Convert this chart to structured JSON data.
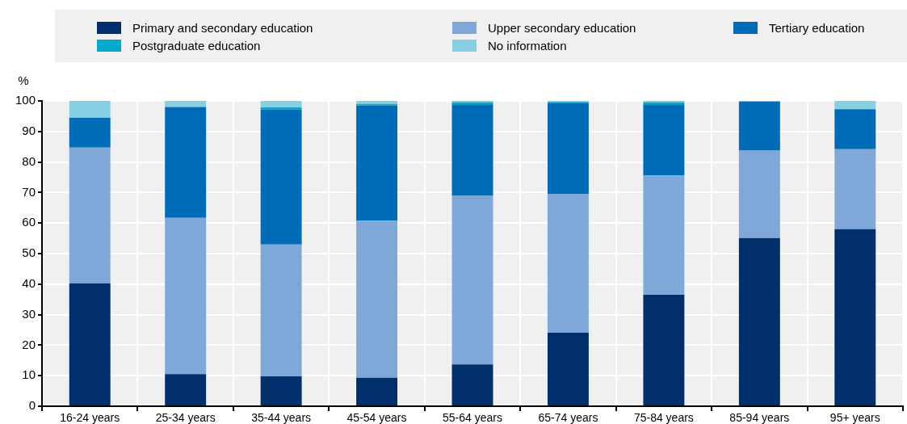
{
  "chart_data": {
    "type": "bar",
    "stacked": true,
    "ylabel": "%",
    "categories": [
      "16-24 years",
      "25-34 years",
      "35-44 years",
      "45-54 years",
      "55-64 years",
      "65-74 years",
      "75-84 years",
      "85-94 years",
      "95+ years"
    ],
    "series": [
      {
        "name": "Primary and secondary education",
        "color": "#002f6c",
        "values": [
          40.2,
          10.5,
          9.8,
          9.3,
          13.7,
          24.1,
          36.5,
          55.1,
          58.0
        ]
      },
      {
        "name": "Upper secondary education",
        "color": "#7fa8d9",
        "values": [
          44.5,
          51.2,
          43.2,
          51.5,
          55.2,
          45.5,
          39.1,
          28.6,
          26.2
        ]
      },
      {
        "name": "Tertiary education",
        "color": "#006bb6",
        "values": [
          9.8,
          36.3,
          44.2,
          37.7,
          30.0,
          29.6,
          23.3,
          16.1,
          13.1
        ]
      },
      {
        "name": "Postgraduate education",
        "color": "#00aacc",
        "values": [
          0,
          0,
          0.7,
          0.5,
          0.7,
          0.5,
          0.7,
          0.1,
          0
        ]
      },
      {
        "name": "No information",
        "color": "#86d0e4",
        "values": [
          5.5,
          2.0,
          2.1,
          1.0,
          0.4,
          0.3,
          0.4,
          0.1,
          2.7
        ]
      }
    ],
    "ylim": [
      0,
      100
    ],
    "yticks": [
      0,
      10,
      20,
      30,
      40,
      50,
      60,
      70,
      80,
      90,
      100
    ],
    "grid": true,
    "legend": "top"
  }
}
